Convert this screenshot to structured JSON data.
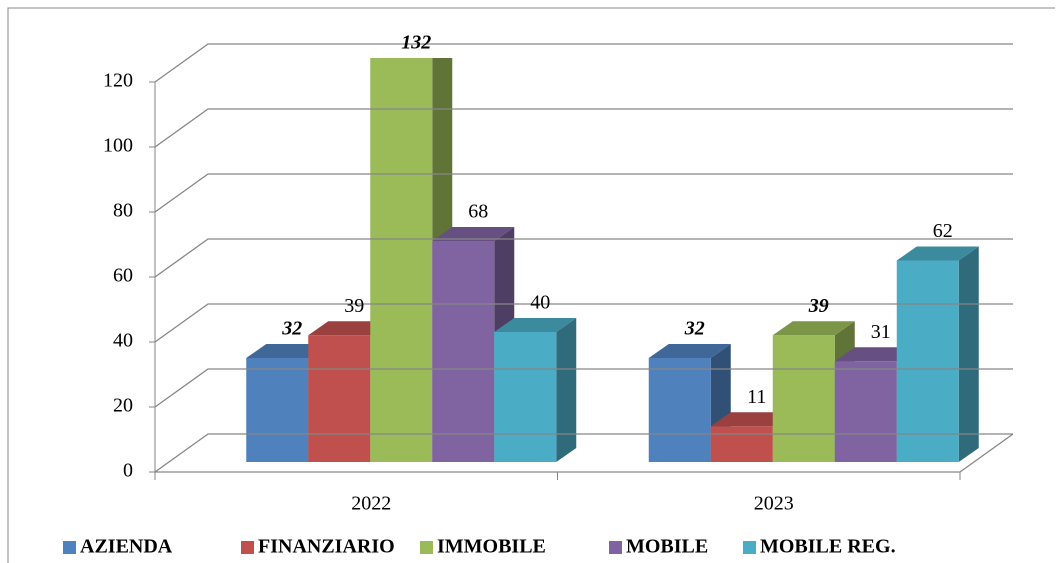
{
  "chart_data": {
    "type": "bar3d",
    "categories": [
      "2022",
      "2023"
    ],
    "series": [
      {
        "name": "AZIENDA",
        "color": "#4f81bd",
        "values": [
          32,
          32
        ],
        "label_bold_italic": true
      },
      {
        "name": "FINANZIARIO",
        "color": "#c0504d",
        "values": [
          39,
          11
        ],
        "label_bold_italic": false
      },
      {
        "name": "IMMOBILE",
        "color": "#9bbb59",
        "values": [
          132,
          39
        ],
        "label_bold_italic": true
      },
      {
        "name": "MOBILE",
        "color": "#8064a2",
        "values": [
          68,
          31
        ],
        "label_bold_italic": false
      },
      {
        "name": "MOBILE REG.",
        "color": "#4bacc6",
        "values": [
          40,
          62
        ],
        "label_bold_italic": false
      }
    ],
    "ylim": [
      0,
      120
    ],
    "yticks": [
      0,
      20,
      40,
      60,
      80,
      100,
      120
    ],
    "grid": true,
    "legend": "bottom"
  }
}
